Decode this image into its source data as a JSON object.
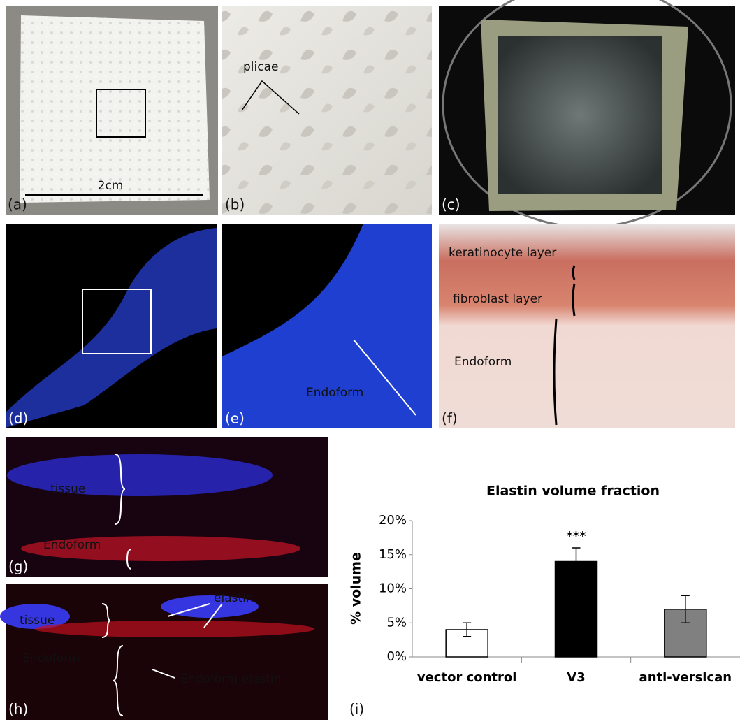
{
  "panels": {
    "a": {
      "label": "(a)",
      "scale": "2cm"
    },
    "b": {
      "label": "(b)",
      "annotation": "plicae"
    },
    "c": {
      "label": "(c)"
    },
    "d": {
      "label": "(d)"
    },
    "e": {
      "label": "(e)",
      "annotation": "Endoform"
    },
    "f": {
      "label": "(f)",
      "annotations": [
        "keratinocyte layer",
        "fibroblast layer",
        "Endoform"
      ]
    },
    "g": {
      "label": "(g)",
      "annotations": [
        "tissue",
        "Endoform"
      ]
    },
    "h": {
      "label": "(h)",
      "annotations": [
        "tissue",
        "elastin",
        "Endoform",
        "Endoform elastin"
      ]
    },
    "i": {
      "label": "(i)"
    }
  },
  "chart_data": {
    "type": "bar",
    "title": "Elastin volume fraction",
    "y_label": "% volume",
    "categories": [
      "vector control",
      "V3",
      "anti-versican"
    ],
    "series": [
      {
        "values": [
          4,
          14,
          7
        ],
        "errors": [
          1,
          2,
          2
        ],
        "colors": [
          "#ffffff",
          "#000000",
          "#808080"
        ]
      }
    ],
    "annotations": [
      {
        "category": 1,
        "text": "***"
      }
    ],
    "ylim": [
      0,
      20
    ],
    "yticks": [
      {
        "value": 0,
        "label": "0%"
      },
      {
        "value": 5,
        "label": "5%"
      },
      {
        "value": 10,
        "label": "10%"
      },
      {
        "value": 15,
        "label": "15%"
      },
      {
        "value": 20,
        "label": "20%"
      }
    ]
  }
}
